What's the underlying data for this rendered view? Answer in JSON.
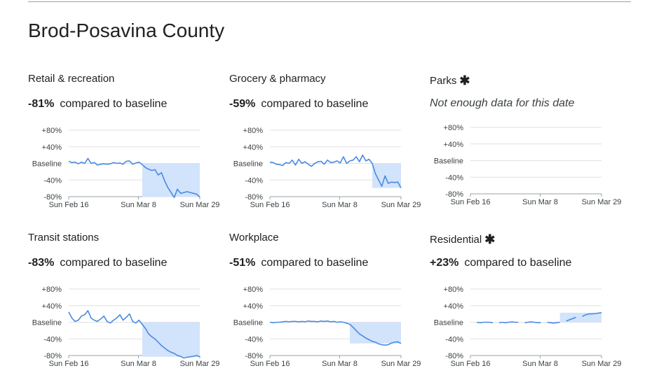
{
  "page": {
    "title": "Brod-Posavina County"
  },
  "colors": {
    "line": "#4a8ae0",
    "fill": "#d2e3fc",
    "grid": "#e0e0e0",
    "axis": "#9aa0a6"
  },
  "chart_data": [
    {
      "type": "area",
      "title": "Retail & recreation",
      "change": "-81%",
      "change_text": "compared to baseline",
      "y_ticks": [
        "+80%",
        "+40%",
        "Baseline",
        "-40%",
        "-80%"
      ],
      "x_ticks": [
        "Sun Feb 16",
        "Sun Mar 8",
        "Sun Mar 29"
      ],
      "ylim": [
        -80,
        80
      ],
      "values": [
        5,
        2,
        3,
        -1,
        3,
        0,
        12,
        0,
        2,
        -4,
        -2,
        -1,
        -2,
        -1,
        2,
        0,
        1,
        -2,
        5,
        6,
        -2,
        1,
        3,
        -3,
        -10,
        -14,
        -17,
        -15,
        -28,
        -22,
        -42,
        -58,
        -70,
        -82,
        -62,
        -72,
        -70,
        -68,
        -70,
        -72,
        -74,
        -81
      ]
    },
    {
      "type": "area",
      "title": "Grocery & pharmacy",
      "change": "-59%",
      "change_text": "compared to baseline",
      "y_ticks": [
        "+80%",
        "+40%",
        "Baseline",
        "-40%",
        "-80%"
      ],
      "x_ticks": [
        "Sun Feb 16",
        "Sun Mar 8",
        "Sun Mar 29"
      ],
      "ylim": [
        -80,
        80
      ],
      "values": [
        3,
        2,
        -2,
        -3,
        -5,
        2,
        0,
        8,
        -4,
        10,
        0,
        4,
        -2,
        -7,
        0,
        4,
        5,
        -2,
        8,
        2,
        3,
        6,
        1,
        16,
        0,
        6,
        8,
        16,
        4,
        20,
        6,
        10,
        0,
        -25,
        -40,
        -55,
        -30,
        -48,
        -45,
        -46,
        -45,
        -59
      ]
    },
    {
      "type": "area",
      "title": "Parks",
      "asterisk": "✱",
      "no_data": "Not enough data for this date",
      "y_ticks": [
        "+80%",
        "+40%",
        "Baseline",
        "-40%",
        "-80%"
      ],
      "x_ticks": [
        "Sun Feb 16",
        "Sun Mar 8",
        "Sun Mar 29"
      ],
      "ylim": [
        -80,
        80
      ],
      "values": []
    },
    {
      "type": "area",
      "title": "Transit stations",
      "change": "-83%",
      "change_text": "compared to baseline",
      "y_ticks": [
        "+80%",
        "+40%",
        "Baseline",
        "-40%",
        "-80%"
      ],
      "x_ticks": [
        "Sun Feb 16",
        "Sun Mar 8",
        "Sun Mar 29"
      ],
      "ylim": [
        -80,
        80
      ],
      "values": [
        25,
        10,
        2,
        5,
        15,
        18,
        28,
        10,
        5,
        2,
        8,
        15,
        2,
        -2,
        5,
        10,
        18,
        5,
        12,
        20,
        2,
        -2,
        5,
        -5,
        -15,
        -28,
        -35,
        -40,
        -48,
        -56,
        -62,
        -68,
        -72,
        -75,
        -80,
        -82,
        -86,
        -84,
        -83,
        -82,
        -80,
        -83
      ]
    },
    {
      "type": "area",
      "title": "Workplace",
      "change": "-51%",
      "change_text": "compared to baseline",
      "y_ticks": [
        "+80%",
        "+40%",
        "Baseline",
        "-40%",
        "-80%"
      ],
      "x_ticks": [
        "Sun Feb 16",
        "Sun Mar 8",
        "Sun Mar 29"
      ],
      "ylim": [
        -80,
        80
      ],
      "values": [
        0,
        -1,
        0,
        0,
        1,
        2,
        1,
        2,
        2,
        1,
        2,
        1,
        3,
        2,
        2,
        1,
        3,
        2,
        3,
        1,
        2,
        0,
        1,
        0,
        -2,
        -5,
        -12,
        -20,
        -28,
        -33,
        -38,
        -42,
        -46,
        -48,
        -52,
        -54,
        -55,
        -54,
        -50,
        -48,
        -47,
        -51
      ]
    },
    {
      "type": "area",
      "title": "Residential",
      "asterisk": "✱",
      "change": "+23%",
      "change_text": "compared to baseline",
      "y_ticks": [
        "+80%",
        "+40%",
        "Baseline",
        "-40%",
        "-80%"
      ],
      "x_ticks": [
        "Sun Feb 16",
        "Sun Mar 8",
        "Sun Mar 29"
      ],
      "ylim": [
        -80,
        80
      ],
      "values": [
        null,
        null,
        0,
        -1,
        0,
        0,
        0,
        -1,
        null,
        -1,
        0,
        -1,
        0,
        1,
        0,
        0,
        null,
        -1,
        0,
        1,
        0,
        -1,
        -1,
        null,
        0,
        -1,
        -2,
        -1,
        0,
        null,
        3,
        6,
        9,
        12,
        null,
        14,
        18,
        20,
        20,
        21,
        22,
        23
      ]
    }
  ]
}
